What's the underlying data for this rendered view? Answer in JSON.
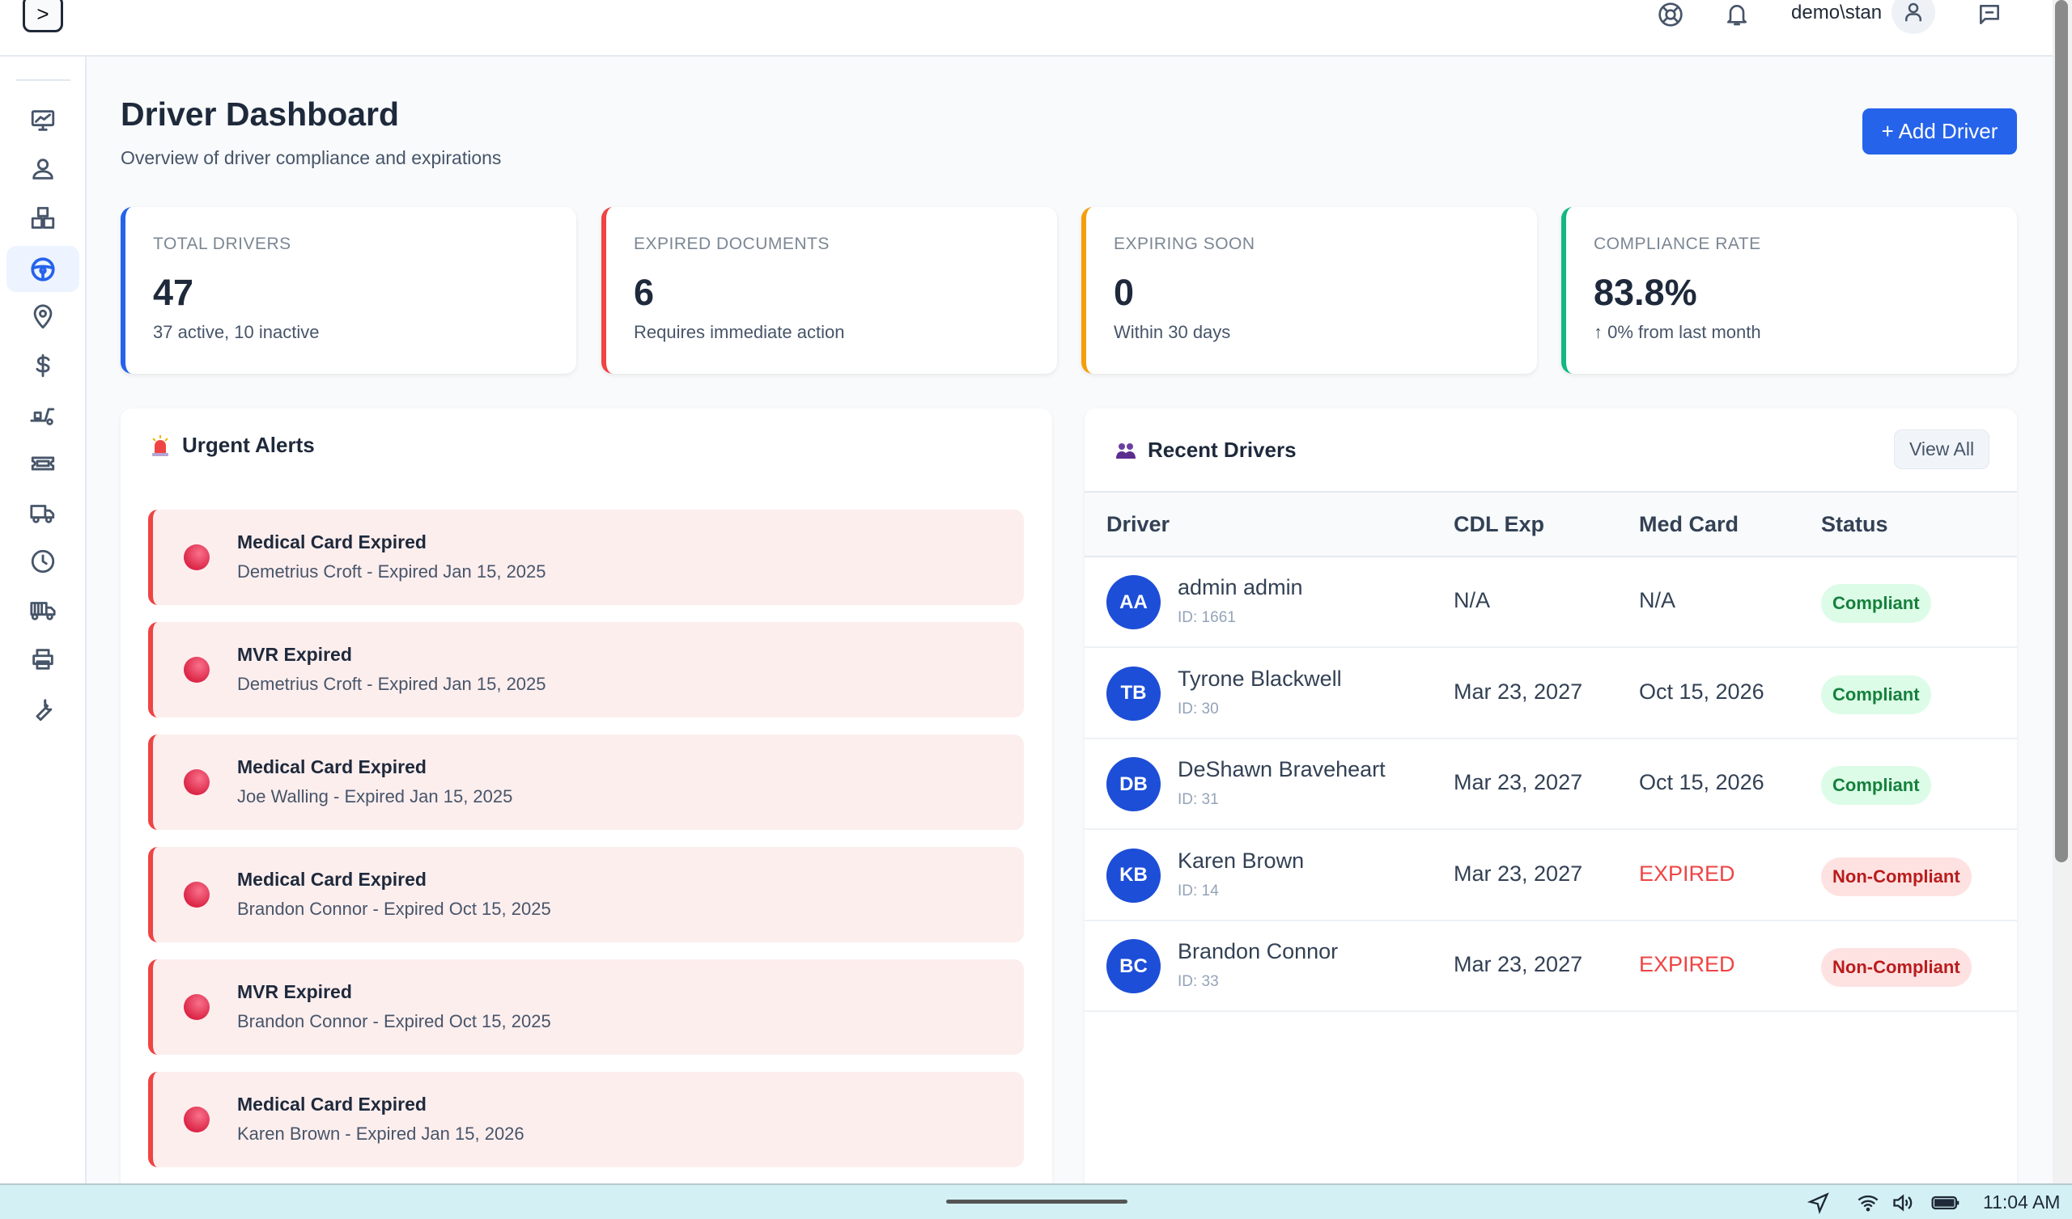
{
  "topbar": {
    "username": "demo\\stan",
    "icons": [
      "help-icon",
      "bell-icon",
      "user-icon",
      "chat-icon"
    ]
  },
  "sidebar": {
    "toggle_label": ">",
    "items": [
      "dashboard",
      "users",
      "inventory",
      "drivers",
      "locations",
      "billing",
      "dispatch",
      "tickets",
      "trucks",
      "history",
      "fleet",
      "print",
      "maintenance"
    ],
    "active": "drivers"
  },
  "page": {
    "title": "Driver Dashboard",
    "subtitle": "Overview of driver compliance and expirations",
    "add_button": "+ Add Driver"
  },
  "stats": [
    {
      "label": "Total Drivers",
      "value": "47",
      "sub": "37 active, 10 inactive",
      "color": "#2563eb"
    },
    {
      "label": "Expired Documents",
      "value": "6",
      "sub": "Requires immediate action",
      "color": "#ef4444"
    },
    {
      "label": "Expiring Soon",
      "value": "0",
      "sub": "Within 30 days",
      "color": "#f59e0b"
    },
    {
      "label": "Compliance Rate",
      "value": "83.8%",
      "sub": "↑ 0% from last month",
      "color": "#10b981"
    }
  ],
  "alerts": {
    "title": "Urgent Alerts",
    "items": [
      {
        "title": "Medical Card Expired",
        "detail": "Demetrius Croft - Expired Jan 15, 2025"
      },
      {
        "title": "MVR Expired",
        "detail": "Demetrius Croft - Expired Jan 15, 2025"
      },
      {
        "title": "Medical Card Expired",
        "detail": "Joe Walling - Expired Jan 15, 2025"
      },
      {
        "title": "Medical Card Expired",
        "detail": "Brandon Connor - Expired Oct 15, 2025"
      },
      {
        "title": "MVR Expired",
        "detail": "Brandon Connor - Expired Oct 15, 2025"
      },
      {
        "title": "Medical Card Expired",
        "detail": "Karen Brown - Expired Jan 15, 2026"
      }
    ]
  },
  "recent": {
    "title": "Recent Drivers",
    "view_all": "View All",
    "columns": [
      "Driver",
      "CDL Exp",
      "Med Card",
      "Status"
    ],
    "rows": [
      {
        "initials": "AA",
        "name": "admin admin",
        "id": "ID: 1661",
        "cdl": "N/A",
        "med": "N/A",
        "status": "Compliant"
      },
      {
        "initials": "TB",
        "name": "Tyrone Blackwell",
        "id": "ID: 30",
        "cdl": "Mar 23, 2027",
        "med": "Oct 15, 2026",
        "status": "Compliant"
      },
      {
        "initials": "DB",
        "name": "DeShawn Braveheart",
        "id": "ID: 31",
        "cdl": "Mar 23, 2027",
        "med": "Oct 15, 2026",
        "status": "Compliant"
      },
      {
        "initials": "KB",
        "name": "Karen Brown",
        "id": "ID: 14",
        "cdl": "Mar 23, 2027",
        "med": "EXPIRED",
        "status": "Non-Compliant"
      },
      {
        "initials": "BC",
        "name": "Brandon Connor",
        "id": "ID: 33",
        "cdl": "Mar 23, 2027",
        "med": "EXPIRED",
        "status": "Non-Compliant"
      }
    ]
  },
  "taskbar": {
    "time": "11:04 AM"
  }
}
